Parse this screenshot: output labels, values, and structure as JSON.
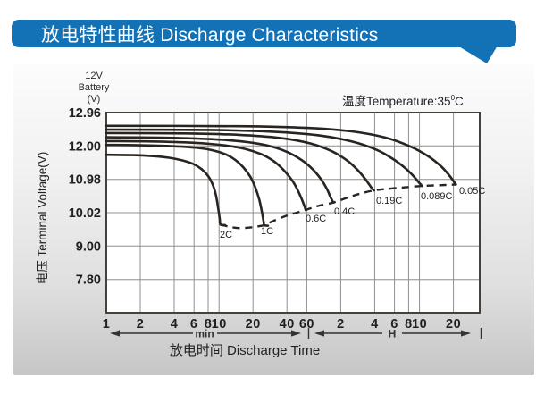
{
  "header": {
    "title": "放电特性曲线 Discharge Characteristics",
    "bg_color": "#1371b6"
  },
  "axis_unit": {
    "line1": "12V",
    "line2": "Battery",
    "line3": "(V)"
  },
  "temperature": {
    "prefix": "温度Temperature:35",
    "degree": "0",
    "unit": "C"
  },
  "y_axis_title": "电压 Terminal Voltage(V)",
  "x_axis_title": "放电时间 Discharge Time",
  "chart_data": {
    "type": "line",
    "title": "Discharge Characteristics",
    "x_scale": "log",
    "x_unit": "minutes",
    "xlabel": "放电时间 Discharge Time",
    "ylabel": "电压 Terminal Voltage(V)",
    "grid": true,
    "colors": {
      "curve": "#29241f",
      "grid": "#8f8f8f",
      "border": "#46413b",
      "tick_text": "#1f1f1f",
      "plot_bg": "#ffffff"
    },
    "y_ticks": [
      {
        "label": "12.96",
        "value": 12.96
      },
      {
        "label": "12.00",
        "value": 12.0
      },
      {
        "label": "10.98",
        "value": 10.98
      },
      {
        "label": "10.02",
        "value": 10.02
      },
      {
        "label": "9.00",
        "value": 9.0
      },
      {
        "label": "7.80",
        "value": 7.8
      }
    ],
    "x_ticks": [
      {
        "label": "1",
        "minutes": 1
      },
      {
        "label": "2",
        "minutes": 2
      },
      {
        "label": "4",
        "minutes": 4
      },
      {
        "label": "6",
        "minutes": 6
      },
      {
        "label": "8",
        "minutes": 8
      },
      {
        "label": "10",
        "minutes": 10
      },
      {
        "label": "20",
        "minutes": 20
      },
      {
        "label": "40",
        "minutes": 40
      },
      {
        "label": "60",
        "minutes": 60
      },
      {
        "label": "2",
        "minutes": 120
      },
      {
        "label": "4",
        "minutes": 240
      },
      {
        "label": "6",
        "minutes": 360
      },
      {
        "label": "8",
        "minutes": 480
      },
      {
        "label": "10",
        "minutes": 600
      },
      {
        "label": "20",
        "minutes": 1200
      }
    ],
    "x_sections": [
      {
        "label": "min",
        "from_minutes": 1,
        "to_minutes": 60
      },
      {
        "label": "H",
        "from_minutes": 60,
        "to_minutes": 1200
      }
    ],
    "series": [
      {
        "name": "2C",
        "label_at": [
          246,
          266
        ],
        "points": [
          [
            1,
            11.73
          ],
          [
            1.7,
            11.72
          ],
          [
            2.6,
            11.69
          ],
          [
            3.6,
            11.64
          ],
          [
            4.7,
            11.56
          ],
          [
            5.9,
            11.45
          ],
          [
            7,
            11.29
          ],
          [
            8,
            11.08
          ],
          [
            8.8,
            10.82
          ],
          [
            9.4,
            10.51
          ],
          [
            9.85,
            10.12
          ],
          [
            10.15,
            9.82
          ],
          [
            10.3,
            9.66
          ],
          [
            11.3,
            9.64
          ]
        ]
      },
      {
        "name": "1C",
        "label_at": [
          292,
          262
        ],
        "points": [
          [
            1,
            12.03
          ],
          [
            2,
            12.02
          ],
          [
            4,
            11.99
          ],
          [
            6.5,
            11.94
          ],
          [
            9,
            11.86
          ],
          [
            11.5,
            11.74
          ],
          [
            14,
            11.57
          ],
          [
            16.5,
            11.34
          ],
          [
            19,
            11.05
          ],
          [
            21,
            10.74
          ],
          [
            22.8,
            10.38
          ],
          [
            24,
            10.04
          ],
          [
            24.8,
            9.76
          ],
          [
            25.2,
            9.64
          ],
          [
            27.2,
            9.62
          ]
        ]
      },
      {
        "name": "0.6C",
        "label_at": [
          342,
          248
        ],
        "points": [
          [
            1,
            12.14
          ],
          [
            2.5,
            12.13
          ],
          [
            6,
            12.09
          ],
          [
            11,
            12.02
          ],
          [
            17,
            11.91
          ],
          [
            24,
            11.74
          ],
          [
            31,
            11.52
          ],
          [
            38,
            11.24
          ],
          [
            45,
            10.93
          ],
          [
            50,
            10.66
          ],
          [
            54,
            10.42
          ],
          [
            57,
            10.22
          ],
          [
            58.8,
            10.1
          ]
        ]
      },
      {
        "name": "0.4C",
        "label_at": [
          374,
          240
        ],
        "points": [
          [
            1,
            12.25
          ],
          [
            3,
            12.24
          ],
          [
            8,
            12.2
          ],
          [
            16,
            12.13
          ],
          [
            27,
            12.01
          ],
          [
            40,
            11.82
          ],
          [
            54,
            11.57
          ],
          [
            68,
            11.28
          ],
          [
            80,
            10.99
          ],
          [
            90,
            10.72
          ],
          [
            97,
            10.48
          ],
          [
            101,
            10.37
          ],
          [
            103,
            10.31
          ]
        ]
      },
      {
        "name": "0.19C",
        "label_at": [
          421,
          228
        ],
        "points": [
          [
            1,
            12.37
          ],
          [
            5,
            12.36
          ],
          [
            15,
            12.32
          ],
          [
            35,
            12.23
          ],
          [
            65,
            12.07
          ],
          [
            100,
            11.84
          ],
          [
            135,
            11.57
          ],
          [
            168,
            11.28
          ],
          [
            196,
            11.01
          ],
          [
            217,
            10.81
          ],
          [
            230,
            10.7
          ],
          [
            237,
            10.66
          ]
        ]
      },
      {
        "name": "0.089C",
        "label_at": [
          471,
          223
        ],
        "points": [
          [
            1,
            12.47
          ],
          [
            8,
            12.46
          ],
          [
            30,
            12.41
          ],
          [
            75,
            12.31
          ],
          [
            150,
            12.13
          ],
          [
            250,
            11.88
          ],
          [
            350,
            11.6
          ],
          [
            450,
            11.32
          ],
          [
            530,
            11.08
          ],
          [
            585,
            10.91
          ],
          [
            620,
            10.82
          ],
          [
            635,
            10.79
          ]
        ]
      },
      {
        "name": "0.05C",
        "label_at": [
          514,
          217
        ],
        "points": [
          [
            1,
            12.58
          ],
          [
            15,
            12.57
          ],
          [
            60,
            12.52
          ],
          [
            150,
            12.42
          ],
          [
            300,
            12.24
          ],
          [
            500,
            11.98
          ],
          [
            720,
            11.68
          ],
          [
            930,
            11.38
          ],
          [
            1090,
            11.12
          ],
          [
            1200,
            10.93
          ],
          [
            1262,
            10.83
          ]
        ]
      }
    ],
    "cutoff_line": {
      "style": "dashed",
      "points": [
        [
          10.3,
          9.66
        ],
        [
          12.3,
          9.59
        ],
        [
          15,
          9.55
        ],
        [
          18,
          9.56
        ],
        [
          22,
          9.6
        ],
        [
          25.2,
          9.64
        ],
        [
          30,
          9.76
        ],
        [
          40,
          9.93
        ],
        [
          50,
          10.03
        ],
        [
          58.8,
          10.1
        ],
        [
          75,
          10.21
        ],
        [
          103,
          10.31
        ],
        [
          140,
          10.46
        ],
        [
          180,
          10.57
        ],
        [
          237,
          10.66
        ],
        [
          320,
          10.71
        ],
        [
          450,
          10.75
        ],
        [
          635,
          10.79
        ],
        [
          900,
          10.81
        ],
        [
          1262,
          10.83
        ]
      ]
    }
  }
}
